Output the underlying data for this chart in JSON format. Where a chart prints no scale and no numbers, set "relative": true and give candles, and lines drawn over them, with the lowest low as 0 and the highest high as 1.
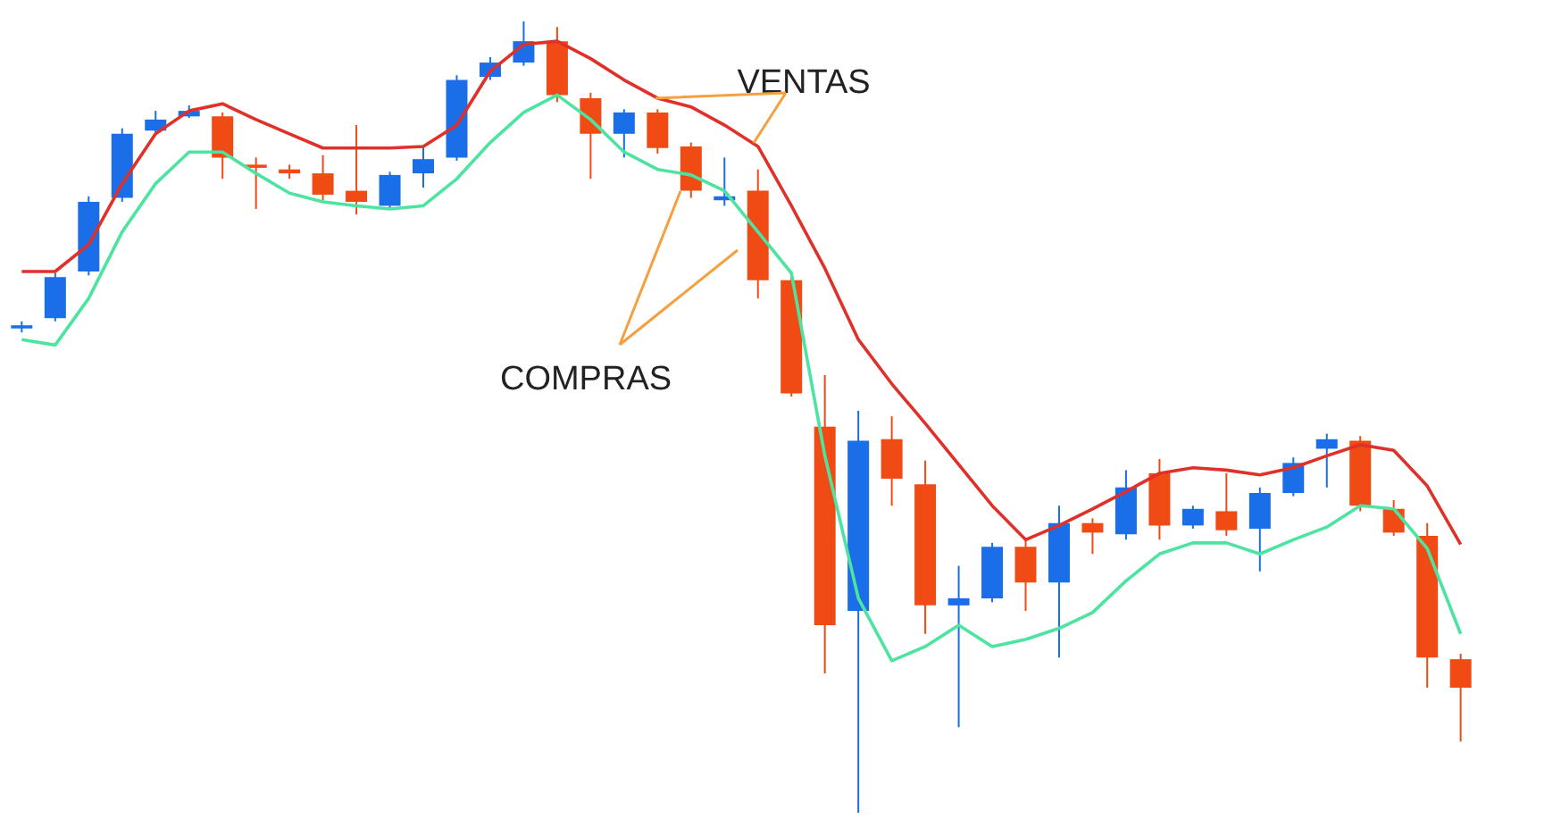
{
  "chart_data": {
    "type": "candlestick",
    "relative": true,
    "categories": [
      null,
      null,
      null,
      null,
      null,
      null,
      null,
      null,
      null,
      null,
      null,
      null,
      null,
      null,
      null,
      null,
      null,
      null,
      null,
      null,
      null,
      null,
      null,
      null,
      null,
      null,
      null,
      null,
      null,
      null,
      null,
      null,
      null,
      null,
      null,
      null,
      null,
      null,
      null,
      null,
      null,
      null,
      null,
      null
    ],
    "ohlc": [
      [
        0.612,
        0.621,
        0.607,
        0.616
      ],
      [
        0.625,
        0.682,
        0.621,
        0.677
      ],
      [
        0.684,
        0.779,
        0.679,
        0.772
      ],
      [
        0.777,
        0.865,
        0.772,
        0.858
      ],
      [
        0.862,
        0.887,
        0.858,
        0.876
      ],
      [
        0.88,
        0.894,
        0.878,
        0.887
      ],
      [
        0.88,
        0.885,
        0.801,
        0.828
      ],
      [
        0.819,
        0.828,
        0.763,
        0.815
      ],
      [
        0.813,
        0.819,
        0.801,
        0.808
      ],
      [
        0.808,
        0.831,
        0.774,
        0.781
      ],
      [
        0.786,
        0.869,
        0.756,
        0.772
      ],
      [
        0.767,
        0.81,
        0.763,
        0.806
      ],
      [
        0.808,
        0.842,
        0.79,
        0.826
      ],
      [
        0.828,
        0.932,
        0.824,
        0.926
      ],
      [
        0.93,
        0.955,
        0.926,
        0.948
      ],
      [
        0.948,
        1,
        0.944,
        0.975
      ],
      [
        0.975,
        0.993,
        0.898,
        0.907
      ],
      [
        0.903,
        0.91,
        0.801,
        0.858
      ],
      [
        0.858,
        0.889,
        0.828,
        0.885
      ],
      [
        0.885,
        0.889,
        0.833,
        0.84
      ],
      [
        0.842,
        0.847,
        0.777,
        0.786
      ],
      [
        0.774,
        0.828,
        0.767,
        0.779
      ],
      [
        0.786,
        0.813,
        0.65,
        0.673
      ],
      [
        0.673,
        0.677,
        0.526,
        0.53
      ],
      [
        0.488,
        0.553,
        0.176,
        0.237
      ],
      [
        0.255,
        0.508,
        0,
        0.47
      ],
      [
        0.472,
        0.501,
        0.388,
        0.422
      ],
      [
        0.415,
        0.445,
        0.226,
        0.262
      ],
      [
        0.262,
        0.312,
        0.108,
        0.271
      ],
      [
        0.271,
        0.341,
        0.266,
        0.336
      ],
      [
        0.336,
        0.345,
        0.255,
        0.291
      ],
      [
        0.291,
        0.388,
        0.196,
        0.366
      ],
      [
        0.366,
        0.372,
        0.327,
        0.354
      ],
      [
        0.352,
        0.433,
        0.345,
        0.411
      ],
      [
        0.429,
        0.447,
        0.345,
        0.363
      ],
      [
        0.363,
        0.388,
        0.359,
        0.384
      ],
      [
        0.381,
        0.429,
        0.35,
        0.357
      ],
      [
        0.359,
        0.411,
        0.305,
        0.404
      ],
      [
        0.404,
        0.449,
        0.4,
        0.442
      ],
      [
        0.46,
        0.479,
        0.411,
        0.472
      ],
      [
        0.47,
        0.476,
        0.381,
        0.388
      ],
      [
        0.384,
        0.395,
        0.35,
        0.354
      ],
      [
        0.35,
        0.366,
        0.158,
        0.196
      ],
      [
        0.194,
        0.201,
        0.09,
        0.158
      ]
    ],
    "colors": [
      "#1a6fe8",
      "#1a6fe8",
      "#1a6fe8",
      "#1a6fe8",
      "#1a6fe8",
      "#1a6fe8",
      "#f04b14",
      "#f04b14",
      "#f04b14",
      "#f04b14",
      "#f04b14",
      "#1a6fe8",
      "#1a6fe8",
      "#1a6fe8",
      "#1a6fe8",
      "#1a6fe8",
      "#f04b14",
      "#f04b14",
      "#1a6fe8",
      "#f04b14",
      "#f04b14",
      "#1a6fe8",
      "#f04b14",
      "#f04b14",
      "#f04b14",
      "#1a6fe8",
      "#f04b14",
      "#f04b14",
      "#1a6fe8",
      "#1a6fe8",
      "#f04b14",
      "#1a6fe8",
      "#f04b14",
      "#1a6fe8",
      "#f04b14",
      "#1a6fe8",
      "#f04b14",
      "#1a6fe8",
      "#1a6fe8",
      "#1a6fe8",
      "#f04b14",
      "#f04b14",
      "#f04b14",
      "#f04b14"
    ],
    "series": [
      {
        "type": "line",
        "color": "#e0302a",
        "values": [
          0.684,
          0.684,
          0.718,
          0.795,
          0.858,
          0.887,
          0.896,
          0.876,
          0.858,
          0.84,
          0.84,
          0.84,
          0.842,
          0.869,
          0.937,
          0.971,
          0.975,
          0.953,
          0.926,
          0.903,
          0.892,
          0.869,
          0.842,
          0.767,
          0.688,
          0.598,
          0.542,
          0.492,
          0.44,
          0.388,
          0.345,
          0.363,
          0.384,
          0.406,
          0.429,
          0.436,
          0.433,
          0.427,
          0.436,
          0.451,
          0.465,
          0.458,
          0.413,
          0.339
        ]
      },
      {
        "type": "line",
        "color": "#4de3a0",
        "values": [
          0.598,
          0.591,
          0.65,
          0.734,
          0.795,
          0.835,
          0.835,
          0.808,
          0.783,
          0.772,
          0.767,
          0.763,
          0.767,
          0.801,
          0.847,
          0.885,
          0.907,
          0.876,
          0.835,
          0.813,
          0.806,
          0.786,
          0.734,
          0.682,
          0.451,
          0.271,
          0.192,
          0.21,
          0.237,
          0.21,
          0.219,
          0.233,
          0.253,
          0.293,
          0.327,
          0.341,
          0.341,
          0.327,
          0.345,
          0.361,
          0.388,
          0.384,
          0.334,
          0.226
        ]
      }
    ],
    "annotations": [
      "VENTAS",
      "COMPRAS"
    ]
  }
}
